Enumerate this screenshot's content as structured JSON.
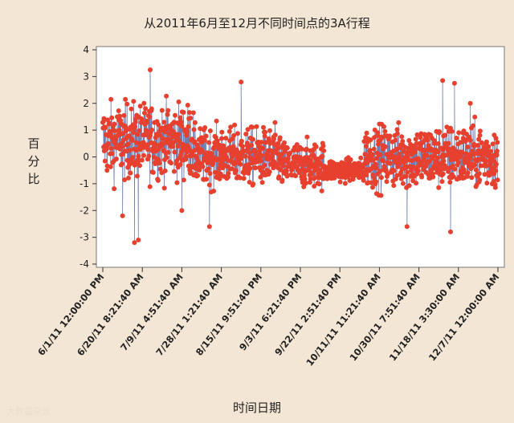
{
  "chart_data": {
    "type": "scatter",
    "title": "从2011年6月至12月不同时间点的3A行程",
    "ylabel": "百分比",
    "xlabel": "时间日期",
    "ylim": [
      -4,
      4
    ],
    "yticks": [
      4,
      3,
      2,
      1,
      0,
      -1,
      -2,
      -3,
      -4
    ],
    "x_tick_labels": [
      "6/1/11 12:00:00 PM",
      "6/20/11 8:21:40 AM",
      "7/9/11 4:51:40 AM",
      "7/28/11 1:21:40 AM",
      "8/15/11 9:51:40 PM",
      "9/3/11 6:21:40 PM",
      "9/22/11 2:51:40 PM",
      "10/11/11 11:21:40 AM",
      "10/30/11 7:51:40 AM",
      "11/18/11 3:30:00 AM",
      "12/7/11 12:00:00 AM"
    ],
    "segments": [
      {
        "x_start": 0.0,
        "x_end": 0.23,
        "level": 0.6,
        "amp": 1.3
      },
      {
        "x_start": 0.23,
        "x_end": 0.45,
        "level": 0.0,
        "amp": 1.0
      },
      {
        "x_start": 0.45,
        "x_end": 0.56,
        "level": -0.3,
        "amp": 0.8
      },
      {
        "x_start": 0.56,
        "x_end": 0.66,
        "level": -0.5,
        "amp": 0.4
      },
      {
        "x_start": 0.66,
        "x_end": 1.0,
        "level": 0.0,
        "amp": 1.1
      }
    ],
    "extremes": [
      {
        "x": 0.08,
        "y": -3.2
      },
      {
        "x": 0.09,
        "y": -3.1
      },
      {
        "x": 0.12,
        "y": 3.25
      },
      {
        "x": 0.35,
        "y": 2.8
      },
      {
        "x": 0.05,
        "y": -2.2
      },
      {
        "x": 0.27,
        "y": -2.6
      },
      {
        "x": 0.86,
        "y": 2.85
      },
      {
        "x": 0.89,
        "y": 2.75
      },
      {
        "x": 0.88,
        "y": -2.8
      },
      {
        "x": 0.77,
        "y": -2.6
      },
      {
        "x": 0.2,
        "y": -2.0
      },
      {
        "x": 0.93,
        "y": 2.0
      }
    ],
    "series_colors": {
      "points": "#e8402f",
      "lines": "#5b6fa8"
    }
  },
  "watermark": "大数据杂谈"
}
